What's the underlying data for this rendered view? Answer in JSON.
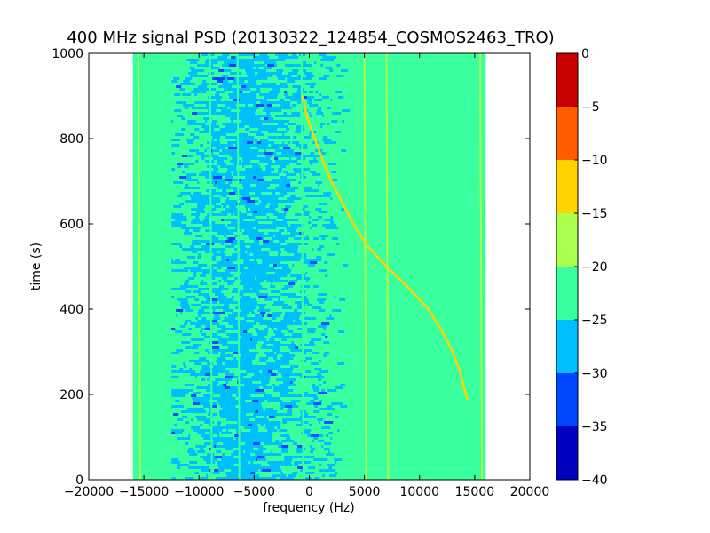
{
  "chart_data": {
    "type": "heatmap",
    "title": "400 MHz signal PSD (20130322_124854_COSMOS2463_TRO)",
    "xlabel": "frequency (Hz)",
    "ylabel": "time (s)",
    "xlim": [
      -20000,
      20000
    ],
    "ylim": [
      0,
      1000
    ],
    "x_ticks": [
      -20000,
      -15000,
      -10000,
      -5000,
      0,
      5000,
      10000,
      15000,
      20000
    ],
    "y_ticks": [
      0,
      200,
      400,
      600,
      800,
      1000
    ],
    "data_extent": {
      "x": [
        -16000,
        16000
      ],
      "y": [
        0,
        1000
      ]
    },
    "background_level": -22.5,
    "noise_region": {
      "x": [
        -12500,
        4000
      ],
      "typical_level": -27.5
    },
    "vertical_lines": [
      {
        "x": -15500,
        "y": [
          0,
          1000
        ],
        "level": -17.5
      },
      {
        "x": -9000,
        "y": [
          0,
          1000
        ],
        "level": -22.5
      },
      {
        "x": -6500,
        "y": [
          0,
          1000
        ],
        "level": -22.5
      },
      {
        "x": -700,
        "y": [
          0,
          1000
        ],
        "level": -22.5
      },
      {
        "x": 5000,
        "y": [
          0,
          1000
        ],
        "level": -17.5
      },
      {
        "x": 7000,
        "y": [
          0,
          1000
        ],
        "level": -17.5
      },
      {
        "x": 15500,
        "y": [
          0,
          1000
        ],
        "level": -17.5
      }
    ],
    "doppler_trace": {
      "level": -12.5,
      "points": [
        {
          "time": 900,
          "freq": -600
        },
        {
          "time": 850,
          "freq": -200
        },
        {
          "time": 800,
          "freq": 500
        },
        {
          "time": 750,
          "freq": 1200
        },
        {
          "time": 700,
          "freq": 2000
        },
        {
          "time": 650,
          "freq": 3000
        },
        {
          "time": 600,
          "freq": 4000
        },
        {
          "time": 550,
          "freq": 5200
        },
        {
          "time": 500,
          "freq": 7000
        },
        {
          "time": 450,
          "freq": 9000
        },
        {
          "time": 400,
          "freq": 10800
        },
        {
          "time": 350,
          "freq": 12000
        },
        {
          "time": 300,
          "freq": 13000
        },
        {
          "time": 250,
          "freq": 13700
        },
        {
          "time": 190,
          "freq": 14300
        }
      ]
    },
    "colorbar": {
      "ticks": [
        0,
        -5,
        -10,
        -15,
        -20,
        -25,
        -30,
        -35,
        -40
      ],
      "levels": [
        {
          "from": -40,
          "to": -35,
          "color": "#0000bf"
        },
        {
          "from": -35,
          "to": -30,
          "color": "#0046ff"
        },
        {
          "from": -30,
          "to": -25,
          "color": "#00bfff"
        },
        {
          "from": -25,
          "to": -20,
          "color": "#39ff9e"
        },
        {
          "from": -20,
          "to": -15,
          "color": "#aaff4d"
        },
        {
          "from": -15,
          "to": -10,
          "color": "#ffd200"
        },
        {
          "from": -10,
          "to": -5,
          "color": "#ff5c00"
        },
        {
          "from": -5,
          "to": 0,
          "color": "#c80000"
        }
      ]
    },
    "grid": false,
    "legend": "none"
  }
}
